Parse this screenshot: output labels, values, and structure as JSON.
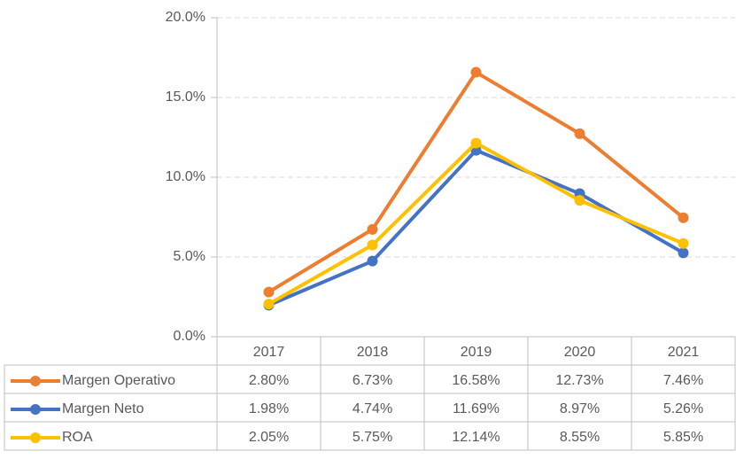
{
  "chart_data": {
    "type": "line",
    "categories": [
      "2017",
      "2018",
      "2019",
      "2020",
      "2021"
    ],
    "series": [
      {
        "name": "Margen Operativo",
        "color": "#ed7d31",
        "values": [
          2.8,
          6.73,
          16.58,
          12.73,
          7.46
        ],
        "value_labels": [
          "2.80%",
          "6.73%",
          "16.58%",
          "12.73%",
          "7.46%"
        ]
      },
      {
        "name": "Margen Neto",
        "color": "#4472c4",
        "values": [
          1.98,
          4.74,
          11.69,
          8.97,
          5.26
        ],
        "value_labels": [
          "1.98%",
          "4.74%",
          "11.69%",
          "8.97%",
          "5.26%"
        ]
      },
      {
        "name": "ROA",
        "color": "#ffc000",
        "values": [
          2.05,
          5.75,
          12.14,
          8.55,
          5.85
        ],
        "value_labels": [
          "2.05%",
          "5.75%",
          "12.14%",
          "8.55%",
          "5.85%"
        ]
      }
    ],
    "ylim": [
      0,
      20
    ],
    "yticks": [
      {
        "value": 0,
        "label": "0.0%"
      },
      {
        "value": 5,
        "label": "5.0%"
      },
      {
        "value": 10,
        "label": "10.0%"
      },
      {
        "value": 15,
        "label": "15.0%"
      },
      {
        "value": 20,
        "label": "20.0%"
      }
    ],
    "grid": true
  }
}
